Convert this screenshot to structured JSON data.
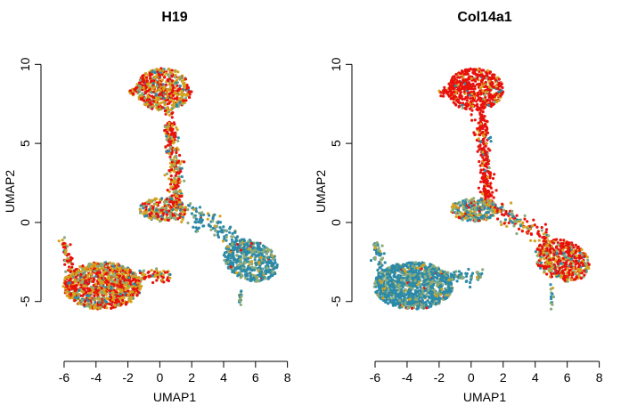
{
  "colors": {
    "high": "#e8120c",
    "mid": "#d4a21d",
    "low_mid": "#8aab7a",
    "low": "#2c8aa8"
  },
  "chart_data": [
    {
      "type": "scatter",
      "title": "H19",
      "xlabel": "UMAP1",
      "ylabel": "UMAP2",
      "xlim": [
        -6.5,
        8.3
      ],
      "ylim": [
        -8,
        10.3
      ],
      "xticks": [
        -6,
        -4,
        -2,
        0,
        2,
        4,
        6,
        8
      ],
      "yticks": [
        -5,
        0,
        5,
        10
      ],
      "color_mix": {
        "top_cluster": [
          0.45,
          0.35,
          0.12,
          0.08
        ],
        "stem": [
          0.5,
          0.3,
          0.15,
          0.05
        ],
        "center_cluster": [
          0.35,
          0.3,
          0.2,
          0.15
        ],
        "left_cluster": [
          0.4,
          0.4,
          0.12,
          0.08
        ],
        "right_cluster": [
          0.02,
          0.08,
          0.25,
          0.65
        ],
        "small_islands": [
          0.05,
          0.15,
          0.3,
          0.5
        ]
      }
    },
    {
      "type": "scatter",
      "title": "Col14a1",
      "xlabel": "UMAP1",
      "ylabel": "UMAP2",
      "xlim": [
        -6.5,
        8.3
      ],
      "ylim": [
        -8,
        10.3
      ],
      "xticks": [
        -6,
        -4,
        -2,
        0,
        2,
        4,
        6,
        8
      ],
      "yticks": [
        -5,
        0,
        5,
        10
      ],
      "color_mix": {
        "top_cluster": [
          0.8,
          0.15,
          0.03,
          0.02
        ],
        "stem": [
          0.85,
          0.1,
          0.03,
          0.02
        ],
        "center_cluster": [
          0.15,
          0.25,
          0.3,
          0.3
        ],
        "left_cluster": [
          0.02,
          0.05,
          0.25,
          0.68
        ],
        "right_cluster": [
          0.55,
          0.25,
          0.12,
          0.08
        ],
        "small_islands": [
          0.05,
          0.1,
          0.3,
          0.55
        ]
      }
    }
  ]
}
